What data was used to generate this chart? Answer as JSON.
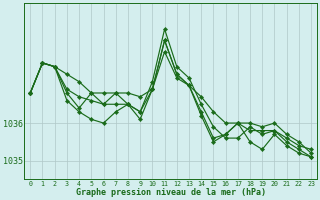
{
  "x": [
    0,
    1,
    2,
    3,
    4,
    5,
    6,
    7,
    8,
    9,
    10,
    11,
    12,
    13,
    14,
    15,
    16,
    17,
    18,
    19,
    20,
    21,
    22,
    23
  ],
  "series": [
    [
      1036.8,
      1037.6,
      1037.5,
      1036.8,
      1036.4,
      1036.8,
      1036.5,
      1036.8,
      1036.5,
      1036.3,
      1037.1,
      1038.5,
      1037.5,
      1037.2,
      1036.5,
      1035.9,
      1035.6,
      1035.6,
      1035.9,
      1035.7,
      1035.8,
      1035.6,
      1035.4,
      1035.3
    ],
    [
      1036.8,
      1037.6,
      1037.5,
      1036.6,
      1036.3,
      1036.1,
      1036.0,
      1036.3,
      1036.5,
      1036.1,
      1036.9,
      1038.2,
      1037.3,
      1037.0,
      1036.2,
      1035.5,
      1035.7,
      1036.0,
      1035.5,
      1035.3,
      1035.7,
      1035.4,
      1035.2,
      1035.1
    ],
    [
      1036.8,
      1037.6,
      1037.5,
      1036.9,
      1036.7,
      1036.6,
      1036.5,
      1036.5,
      1036.5,
      1036.3,
      1036.9,
      1038.2,
      1037.3,
      1037.0,
      1036.3,
      1035.6,
      1035.7,
      1036.0,
      1035.8,
      1035.8,
      1035.8,
      1035.5,
      1035.3,
      1035.1
    ],
    [
      1036.8,
      1037.6,
      1037.5,
      1037.3,
      1037.1,
      1036.8,
      1036.8,
      1036.8,
      1036.8,
      1036.7,
      1036.9,
      1037.9,
      1037.2,
      1037.0,
      1036.7,
      1036.3,
      1036.0,
      1036.0,
      1036.0,
      1035.9,
      1036.0,
      1035.7,
      1035.5,
      1035.2
    ]
  ],
  "line_color": "#1a6b1a",
  "marker_color": "#1a6b1a",
  "bg_color": "#d4eeee",
  "grid_color": "#b0c8c8",
  "axis_color": "#1a6b1a",
  "xlabel": "Graphe pression niveau de la mer (hPa)",
  "ytick_vals": [
    1035,
    1036
  ],
  "ytick_labels": [
    "1035",
    "1036"
  ],
  "ylim": [
    1034.5,
    1039.2
  ],
  "xlim": [
    -0.5,
    23.5
  ]
}
